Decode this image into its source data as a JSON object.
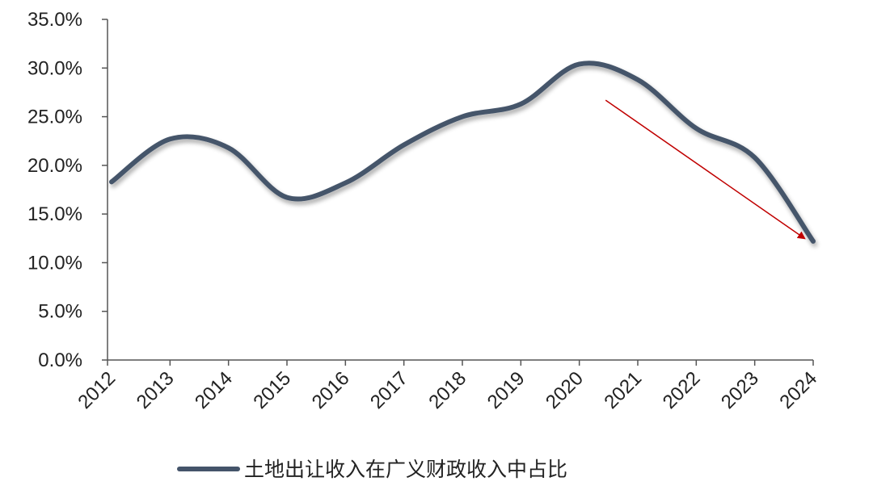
{
  "chart_data": {
    "type": "line",
    "title": "",
    "xlabel": "",
    "ylabel": "",
    "categories": [
      "2012",
      "2013",
      "2014",
      "2015",
      "2016",
      "2017",
      "2018",
      "2019",
      "2020",
      "2021",
      "2022",
      "2023",
      "2024"
    ],
    "series": [
      {
        "name": "土地出让收入在广义财政收入中占比",
        "values": [
          18.3,
          22.7,
          21.8,
          16.7,
          18.2,
          22.1,
          25.0,
          26.3,
          30.4,
          28.8,
          23.8,
          20.8,
          12.2
        ],
        "color": "#44546A",
        "smooth": true
      }
    ],
    "ylim": [
      0,
      35
    ],
    "yticks": [
      "0.0%",
      "5.0%",
      "10.0%",
      "15.0%",
      "20.0%",
      "25.0%",
      "30.0%",
      "35.0%"
    ],
    "grid": false,
    "legend": "bottom-center",
    "annotation": {
      "type": "arrow",
      "from": [
        2020.45,
        26.7
      ],
      "to": [
        2023.85,
        12.5
      ],
      "color": "#C00000"
    }
  }
}
